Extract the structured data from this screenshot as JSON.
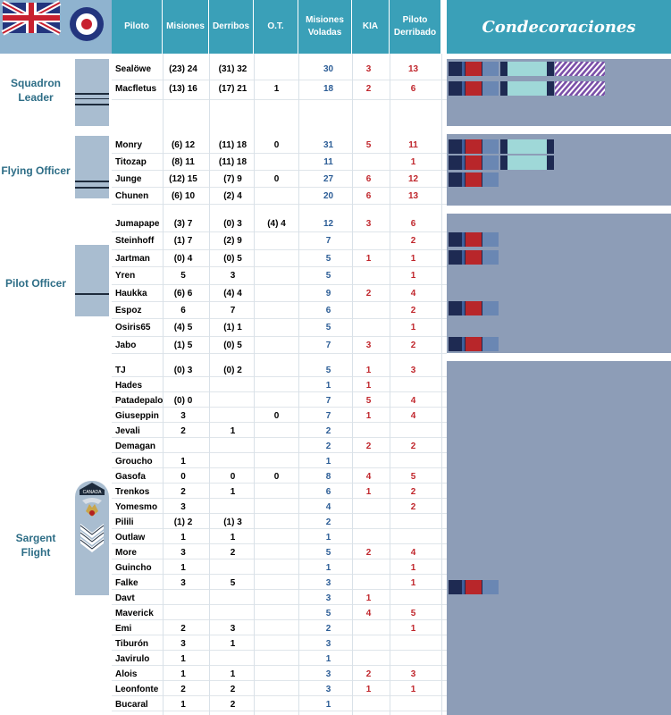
{
  "header": {
    "piloto": "Piloto",
    "misiones": "Misiones",
    "derribos": "Derribos",
    "ot": "O.T.",
    "misiones_voladas": "Misiones Voladas",
    "kia": "KIA",
    "piloto_derribado": "Piloto Derribado",
    "condecoraciones": "Condecoraciones"
  },
  "ranks": {
    "squadron_leader": "Squadron Leader",
    "flying_officer": "Flying Officer",
    "pilot_officer": "Pilot Officer",
    "sargent_flight": "Sargent Flight",
    "badge_text": "CANADA"
  },
  "squadron_leader": [
    {
      "name": "Sealöwe",
      "mis": "(23) 24",
      "der": "(31) 32",
      "ot": "",
      "mv": "30",
      "kia": "3",
      "pd": "13"
    },
    {
      "name": "Macfletus",
      "mis": "(13) 16",
      "der": "(17) 21",
      "ot": "1",
      "mv": "18",
      "kia": "2",
      "pd": "6"
    }
  ],
  "flying_officer": [
    {
      "name": "Monry",
      "mis": "(6) 12",
      "der": "(11) 18",
      "ot": "0",
      "mv": "31",
      "kia": "5",
      "pd": "11"
    },
    {
      "name": "Titozap",
      "mis": "(8) 11",
      "der": "(11) 18",
      "ot": "",
      "mv": "11",
      "kia": "",
      "pd": "1"
    },
    {
      "name": "Junge",
      "mis": "(12) 15",
      "der": "(7) 9",
      "ot": "0",
      "mv": "27",
      "kia": "6",
      "pd": "12"
    },
    {
      "name": "Chunen",
      "mis": "(6) 10",
      "der": "(2) 4",
      "ot": "",
      "mv": "20",
      "kia": "6",
      "pd": "13"
    }
  ],
  "pilot_officer": [
    {
      "name": "Jumapape",
      "mis": "(3) 7",
      "der": "(0) 3",
      "ot": "(4) 4",
      "mv": "12",
      "kia": "3",
      "pd": "6"
    },
    {
      "name": "Steinhoff",
      "mis": "(1) 7",
      "der": "(2) 9",
      "ot": "",
      "mv": "7",
      "kia": "",
      "pd": "2"
    },
    {
      "name": "Jartman",
      "mis": "(0) 4",
      "der": "(0) 5",
      "ot": "",
      "mv": "5",
      "kia": "1",
      "pd": "1"
    },
    {
      "name": "Yren",
      "mis": "5",
      "der": "3",
      "ot": "",
      "mv": "5",
      "kia": "",
      "pd": "1"
    },
    {
      "name": "Haukka",
      "mis": "(6) 6",
      "der": "(4) 4",
      "ot": "",
      "mv": "9",
      "kia": "2",
      "pd": "4"
    },
    {
      "name": "Espoz",
      "mis": "6",
      "der": "7",
      "ot": "",
      "mv": "6",
      "kia": "",
      "pd": "2"
    },
    {
      "name": "Osiris65",
      "mis": "(4) 5",
      "der": "(1) 1",
      "ot": "",
      "mv": "5",
      "kia": "",
      "pd": "1"
    },
    {
      "name": "Jabo",
      "mis": "(1) 5",
      "der": "(0) 5",
      "ot": "",
      "mv": "7",
      "kia": "3",
      "pd": "2"
    }
  ],
  "sargent_flight": [
    {
      "name": "TJ",
      "mis": "(0) 3",
      "der": "(0) 2",
      "ot": "",
      "mv": "5",
      "kia": "1",
      "pd": "3"
    },
    {
      "name": "Hades",
      "mis": "",
      "der": "",
      "ot": "",
      "mv": "1",
      "kia": "1",
      "pd": ""
    },
    {
      "name": "Patadepalo",
      "mis": "(0) 0",
      "der": "",
      "ot": "",
      "mv": "7",
      "kia": "5",
      "pd": "4"
    },
    {
      "name": "Giuseppin",
      "mis": "3",
      "der": "",
      "ot": "0",
      "mv": "7",
      "kia": "1",
      "pd": "4"
    },
    {
      "name": "Jevali",
      "mis": "2",
      "der": "1",
      "ot": "",
      "mv": "2",
      "kia": "",
      "pd": ""
    },
    {
      "name": "Demagan",
      "mis": "",
      "der": "",
      "ot": "",
      "mv": "2",
      "kia": "2",
      "pd": "2"
    },
    {
      "name": "Groucho",
      "mis": "1",
      "der": "",
      "ot": "",
      "mv": "1",
      "kia": "",
      "pd": ""
    },
    {
      "name": "Gasofa",
      "mis": "0",
      "der": "0",
      "ot": "0",
      "mv": "8",
      "kia": "4",
      "pd": "5"
    },
    {
      "name": "Trenkos",
      "mis": "2",
      "der": "1",
      "ot": "",
      "mv": "6",
      "kia": "1",
      "pd": "2"
    },
    {
      "name": "Yomesmo",
      "mis": "3",
      "der": "",
      "ot": "",
      "mv": "4",
      "kia": "",
      "pd": "2"
    },
    {
      "name": "Pilili",
      "mis": "(1) 2",
      "der": "(1) 3",
      "ot": "",
      "mv": "2",
      "kia": "",
      "pd": ""
    },
    {
      "name": "Outlaw",
      "mis": "1",
      "der": "1",
      "ot": "",
      "mv": "1",
      "kia": "",
      "pd": ""
    },
    {
      "name": "More",
      "mis": "3",
      "der": "2",
      "ot": "",
      "mv": "5",
      "kia": "2",
      "pd": "4"
    },
    {
      "name": "Guincho",
      "mis": "1",
      "der": "",
      "ot": "",
      "mv": "1",
      "kia": "",
      "pd": "1"
    },
    {
      "name": "Falke",
      "mis": "3",
      "der": "5",
      "ot": "",
      "mv": "3",
      "kia": "",
      "pd": "1"
    },
    {
      "name": "Davt",
      "mis": "",
      "der": "",
      "ot": "",
      "mv": "3",
      "kia": "1",
      "pd": ""
    },
    {
      "name": "Maverick",
      "mis": "",
      "der": "",
      "ot": "",
      "mv": "5",
      "kia": "4",
      "pd": "5"
    },
    {
      "name": "Emi",
      "mis": "2",
      "der": "3",
      "ot": "",
      "mv": "2",
      "kia": "",
      "pd": "1"
    },
    {
      "name": "Tiburón",
      "mis": "3",
      "der": "1",
      "ot": "",
      "mv": "3",
      "kia": "",
      "pd": ""
    },
    {
      "name": "Javirulo",
      "mis": "1",
      "der": "",
      "ot": "",
      "mv": "1",
      "kia": "",
      "pd": ""
    },
    {
      "name": "Alois",
      "mis": "1",
      "der": "1",
      "ot": "",
      "mv": "3",
      "kia": "2",
      "pd": "3"
    },
    {
      "name": "Leonfonte",
      "mis": "2",
      "der": "2",
      "ot": "",
      "mv": "3",
      "kia": "1",
      "pd": "1"
    },
    {
      "name": "Bucaral",
      "mis": "1",
      "der": "2",
      "ot": "",
      "mv": "1",
      "kia": "",
      "pd": ""
    }
  ],
  "colors": {
    "header_bg": "#3aa0b8",
    "panel_bg": "#8d9db7",
    "missions_text": "#2c5d96",
    "kia_text": "#c0262c"
  }
}
